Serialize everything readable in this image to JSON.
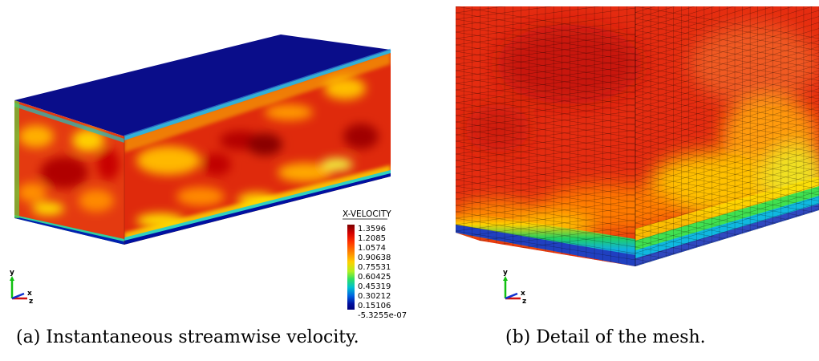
{
  "figure": {
    "panel_a": {
      "caption": "(a) Instantaneous streamwise velocity.",
      "legend": {
        "title": "X-VELOCITY",
        "ticks": [
          "1.3596",
          "1.2085",
          "1.0574",
          "0.90638",
          "0.75531",
          "0.60425",
          "0.45319",
          "0.30212",
          "0.15106",
          "-5.3255e-07"
        ],
        "colors": [
          "#7a0000",
          "#d40000",
          "#ff3000",
          "#ff8000",
          "#ffd000",
          "#b0f020",
          "#30e060",
          "#00c0d0",
          "#0060e0",
          "#0010a0",
          "#00007a"
        ]
      },
      "triad": {
        "y": "y",
        "x": "x",
        "z": "z"
      },
      "colors": {
        "top_face": "#0a0d8a",
        "front_face": "#e43a10",
        "side_face": "#df2a0c",
        "hot": "#a80000",
        "cool": "#ffe000"
      }
    },
    "panel_b": {
      "caption": "(b) Detail of the mesh.",
      "triad": {
        "y": "y",
        "x": "x",
        "z": "z"
      },
      "colors": {
        "base": "#e52c10",
        "mesh": "#000000"
      }
    }
  }
}
